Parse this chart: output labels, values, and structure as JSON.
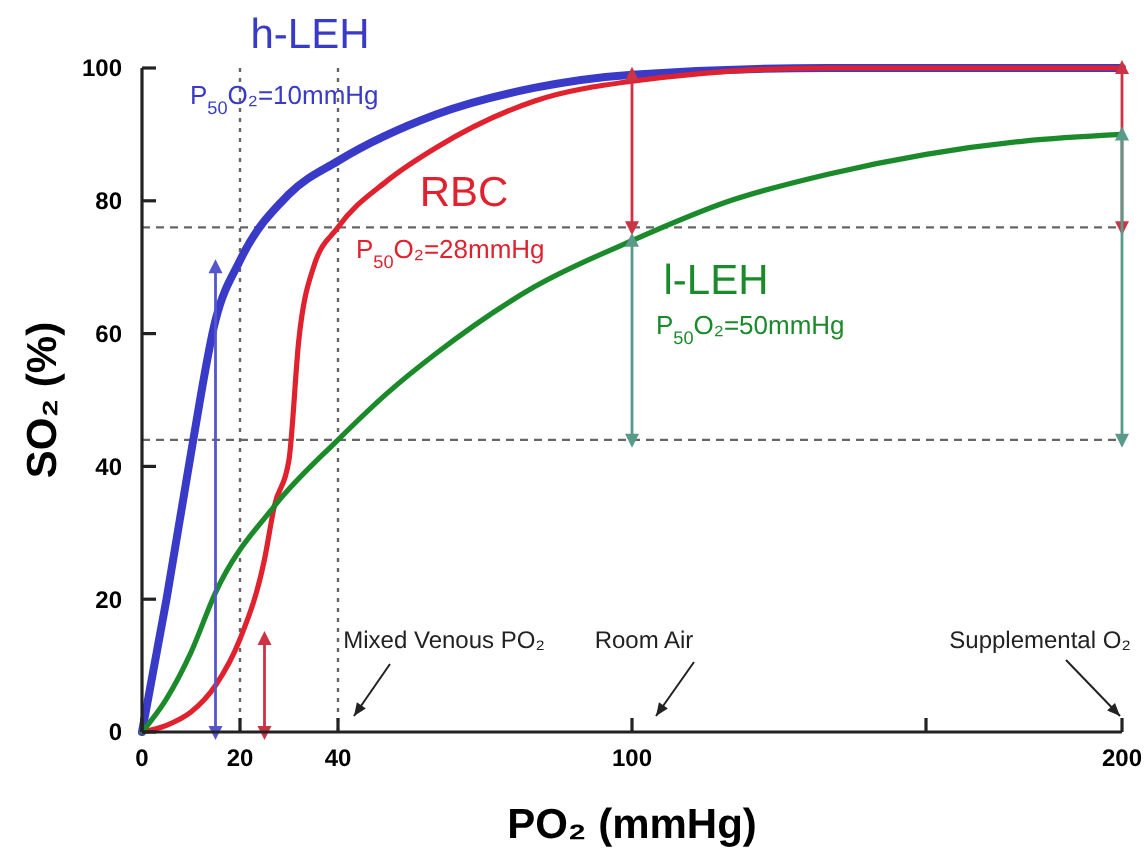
{
  "chart_data": {
    "type": "line",
    "xlabel": "PO₂ (mmHg)",
    "ylabel": "SO₂ (%)",
    "xlim": [
      0,
      200
    ],
    "ylim": [
      0,
      100
    ],
    "xticks": [
      0,
      20,
      40,
      100,
      {
        "value": 160,
        "label": null
      },
      200
    ],
    "yticks": [
      0,
      20,
      40,
      60,
      80,
      100
    ],
    "grid": false,
    "legend": false,
    "marker": "none",
    "line_style": "solid",
    "series": [
      {
        "name": "h-LEH",
        "color": "#3a3ac8",
        "x": [
          0,
          5,
          10,
          15,
          20,
          30,
          40,
          60,
          80,
          100,
          140,
          200
        ],
        "values": [
          0,
          20,
          42,
          62,
          71,
          81,
          86,
          93,
          97,
          99,
          100,
          100
        ]
      },
      {
        "name": "RBC",
        "color": "#e0222e",
        "x": [
          0,
          5,
          10,
          15,
          20,
          25,
          27,
          30,
          32,
          35,
          40,
          50,
          60,
          80,
          100,
          140,
          200
        ],
        "values": [
          0,
          1,
          3,
          7,
          14,
          26,
          34,
          41,
          59,
          70,
          76,
          83,
          88,
          95,
          98,
          100,
          100
        ]
      },
      {
        "name": "l-LEH",
        "color": "#1a8a2a",
        "x": [
          0,
          5,
          10,
          15,
          27,
          40,
          50,
          60,
          80,
          100,
          120,
          140,
          160,
          180,
          200
        ],
        "values": [
          0,
          5,
          12,
          21,
          34,
          44,
          51,
          57,
          67,
          74,
          80,
          84,
          87,
          89,
          90
        ]
      },
      {
        "type": "line",
        "marker": "triangle",
        "color": "#5555cc",
        "x": [
          15,
          15
        ],
        "values": [
          0,
          70
        ]
      },
      {
        "type": "line",
        "marker": "triangle",
        "color": "#cc3344",
        "x": [
          25,
          25
        ],
        "values": [
          0,
          14
        ]
      },
      {
        "type": "line",
        "marker": "triangle",
        "color": "#cc3344",
        "x": [
          100,
          100
        ],
        "values": [
          76,
          99
        ]
      },
      {
        "type": "line",
        "marker": "triangle",
        "color": "#cc3344",
        "x": [
          200,
          200
        ],
        "values": [
          76,
          100
        ]
      },
      {
        "type": "line",
        "marker": "triangle",
        "color": "#5a9a8a",
        "x": [
          100,
          100
        ],
        "values": [
          44,
          74
        ]
      },
      {
        "type": "line",
        "marker": "triangle",
        "color": "#5a9a8a",
        "x": [
          200,
          200
        ],
        "values": [
          44,
          90
        ]
      }
    ],
    "ref_lines": [
      {
        "axis": "x",
        "value": 20,
        "color": "#666666",
        "line_style": "dotted"
      },
      {
        "axis": "x",
        "value": 40,
        "color": "#666666",
        "line_style": "dotted"
      },
      {
        "axis": "y",
        "value": 76,
        "color": "#666666",
        "line_style": "dashed"
      },
      {
        "axis": "y",
        "value": 44,
        "color": "#666666",
        "line_style": "dashed"
      }
    ],
    "annotations": [
      "P$_{50}$O₂=10mmHg",
      "P$_{50}$O₂=28mmHg",
      "P$_{50}$O₂=50mmHg",
      "Mixed Venous PO₂",
      "Room Air",
      "Supplemental O₂"
    ]
  }
}
